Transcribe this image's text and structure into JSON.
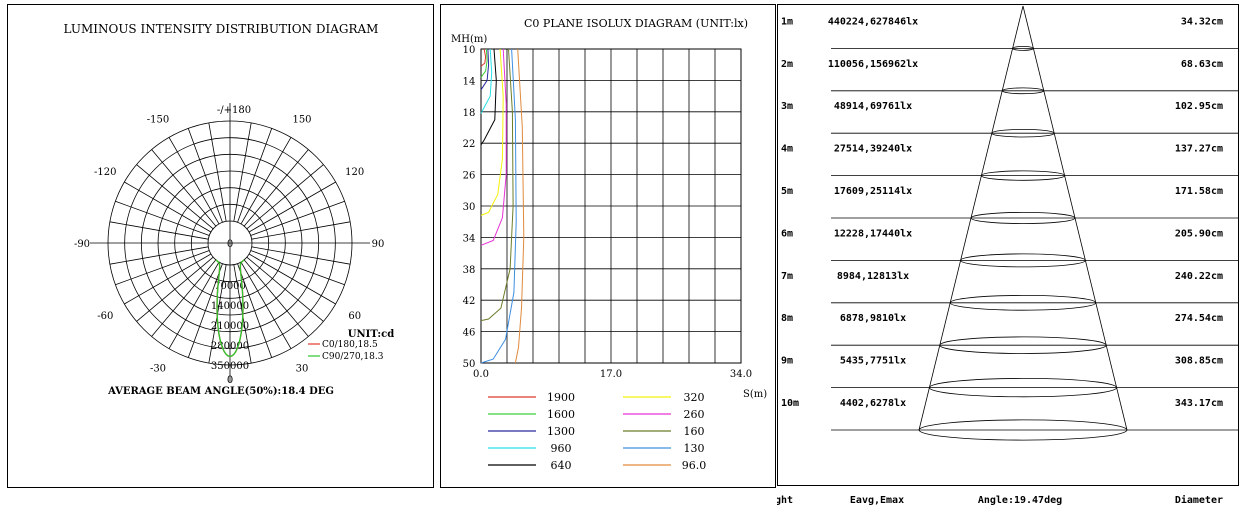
{
  "chart_data": [
    {
      "type": "polar",
      "title": "LUMINOUS INTENSITY DISTRIBUTION DIAGRAM",
      "angle_labels": [
        {
          "angle": 180,
          "text": "-/+180"
        },
        {
          "angle": 150,
          "text": "150"
        },
        {
          "angle": -150,
          "text": "-150"
        },
        {
          "angle": 120,
          "text": "120"
        },
        {
          "angle": -120,
          "text": "-120"
        },
        {
          "angle": 90,
          "text": "90"
        },
        {
          "angle": -90,
          "text": "-90"
        },
        {
          "angle": 60,
          "text": "60"
        },
        {
          "angle": -60,
          "text": "-60"
        },
        {
          "angle": 30,
          "text": "30"
        },
        {
          "angle": -30,
          "text": "-30"
        },
        {
          "angle": 0,
          "text": "0"
        }
      ],
      "radial_max": 350000,
      "radial_ticks": [
        0,
        70000,
        140000,
        210000,
        280000,
        350000
      ],
      "radial_tick_labels": [
        "0",
        "70000",
        "140000",
        "210000",
        "280000",
        "350000"
      ],
      "unit_label": "UNIT:cd",
      "series": [
        {
          "name": "C0/180,18.5",
          "color": "#e23b2a",
          "beam_half_angle": 9.25
        },
        {
          "name": "C90/270,18.3",
          "color": "#2ec62e",
          "beam_half_angle": 9.15
        }
      ],
      "peak_intensity": 320000,
      "footer": "AVERAGE BEAM ANGLE(50%):18.4 DEG"
    },
    {
      "type": "line",
      "title": "C0 PLANE ISOLUX DIAGRAM (UNIT:lx)",
      "ylabel": "MH(m)",
      "xlabel": "S(m)",
      "y_ticks": [
        "10",
        "14",
        "18",
        "22",
        "26",
        "30",
        "34",
        "38",
        "42",
        "46",
        "50"
      ],
      "ylim": [
        10,
        50
      ],
      "x_ticks": [
        "0.0",
        "17.0",
        "34.0"
      ],
      "xlim": [
        0,
        34
      ],
      "grid": true,
      "series": [
        {
          "name": "1900",
          "color": "#d93a2b",
          "points": [
            [
              0.4,
              10
            ],
            [
              0.6,
              11
            ],
            [
              0.5,
              11.8
            ],
            [
              0,
              12.2
            ]
          ]
        },
        {
          "name": "1600",
          "color": "#3fcf3f",
          "points": [
            [
              0.7,
              10
            ],
            [
              0.8,
              11.5
            ],
            [
              0.6,
              12.8
            ],
            [
              0,
              13.6
            ]
          ]
        },
        {
          "name": "1300",
          "color": "#2a2a9e",
          "points": [
            [
              0.9,
              10
            ],
            [
              1.0,
              12
            ],
            [
              0.8,
              14
            ],
            [
              0,
              15.2
            ]
          ]
        },
        {
          "name": "960",
          "color": "#28e0e8",
          "points": [
            [
              1.2,
              10
            ],
            [
              1.4,
              13
            ],
            [
              1.2,
              16
            ],
            [
              0,
              18.2
            ]
          ]
        },
        {
          "name": "640",
          "color": "#000000",
          "points": [
            [
              1.7,
              10
            ],
            [
              2.0,
              14
            ],
            [
              1.8,
              19
            ],
            [
              0.4,
              21.6
            ],
            [
              0,
              22.2
            ]
          ]
        },
        {
          "name": "320",
          "color": "#f4f20a",
          "points": [
            [
              2.5,
              10
            ],
            [
              2.9,
              16
            ],
            [
              2.8,
              24
            ],
            [
              2.2,
              28.5
            ],
            [
              1,
              30.8
            ],
            [
              0,
              31.2
            ]
          ]
        },
        {
          "name": "260",
          "color": "#e632d6",
          "points": [
            [
              2.9,
              10
            ],
            [
              3.3,
              17
            ],
            [
              3.3,
              26
            ],
            [
              2.8,
              31.5
            ],
            [
              1.6,
              34.4
            ],
            [
              0,
              35
            ]
          ]
        },
        {
          "name": "160",
          "color": "#6b7d2a",
          "points": [
            [
              3.6,
              10
            ],
            [
              4.1,
              18
            ],
            [
              4.2,
              30
            ],
            [
              3.8,
              38
            ],
            [
              2.6,
              43
            ],
            [
              1,
              44.4
            ],
            [
              0,
              44.6
            ]
          ]
        },
        {
          "name": "130",
          "color": "#3d8fe0",
          "points": [
            [
              4.0,
              10
            ],
            [
              4.5,
              19
            ],
            [
              4.6,
              32
            ],
            [
              4.3,
              41
            ],
            [
              3.2,
              47
            ],
            [
              1.6,
              49.5
            ],
            [
              0,
              50
            ]
          ]
        },
        {
          "name": "96.0",
          "color": "#e08a3c",
          "points": [
            [
              4.8,
              10
            ],
            [
              5.4,
              20
            ],
            [
              5.6,
              34
            ],
            [
              5.3,
              43
            ],
            [
              4.9,
              48
            ],
            [
              4.5,
              50
            ]
          ]
        }
      ],
      "legend": [
        {
          "label": "1900",
          "color": "#d93a2b"
        },
        {
          "label": "320",
          "color": "#f4f20a"
        },
        {
          "label": "1600",
          "color": "#3fcf3f"
        },
        {
          "label": "260",
          "color": "#e632d6"
        },
        {
          "label": "1300",
          "color": "#2a2a9e"
        },
        {
          "label": "160",
          "color": "#6b7d2a"
        },
        {
          "label": "960",
          "color": "#28e0e8"
        },
        {
          "label": "130",
          "color": "#3d8fe0"
        },
        {
          "label": "640",
          "color": "#000000"
        },
        {
          "label": "96.0",
          "color": "#e08a3c"
        }
      ]
    },
    {
      "type": "table",
      "title": "",
      "beam_angle_label": "Angle:19.47deg",
      "columns": [
        "ght",
        "Eavg,Emax",
        "Angle:19.47deg",
        "Diameter"
      ],
      "rows": [
        {
          "height": "1m",
          "lux": "440224,627846lx",
          "diameter": "34.32cm",
          "diameter_cm": 34.32
        },
        {
          "height": "2m",
          "lux": "110056,156962lx",
          "diameter": "68.63cm",
          "diameter_cm": 68.63
        },
        {
          "height": "3m",
          "lux": "48914,69761lx",
          "diameter": "102.95cm",
          "diameter_cm": 102.95
        },
        {
          "height": "4m",
          "lux": "27514,39240lx",
          "diameter": "137.27cm",
          "diameter_cm": 137.27
        },
        {
          "height": "5m",
          "lux": "17609,25114lx",
          "diameter": "171.58cm",
          "diameter_cm": 171.58
        },
        {
          "height": "6m",
          "lux": "12228,17440lx",
          "diameter": "205.90cm",
          "diameter_cm": 205.9
        },
        {
          "height": "7m",
          "lux": "8984,12813lx",
          "diameter": "240.22cm",
          "diameter_cm": 240.22
        },
        {
          "height": "8m",
          "lux": "6878,9810lx",
          "diameter": "274.54cm",
          "diameter_cm": 274.54
        },
        {
          "height": "9m",
          "lux": "5435,7751lx",
          "diameter": "308.85cm",
          "diameter_cm": 308.85
        },
        {
          "height": "10m",
          "lux": "4402,6278lx",
          "diameter": "343.17cm",
          "diameter_cm": 343.17
        }
      ]
    }
  ]
}
